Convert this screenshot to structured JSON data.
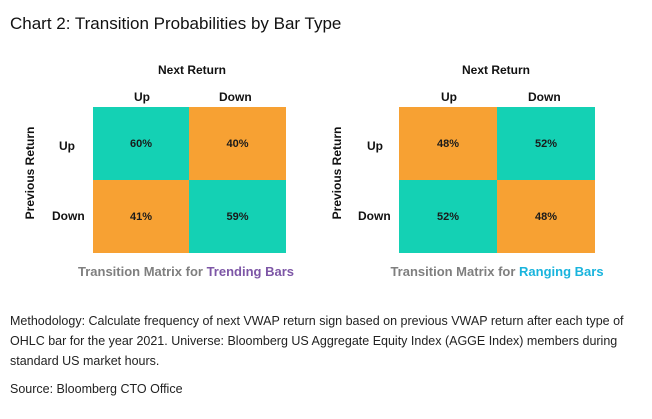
{
  "title": "Chart 2: Transition Probabilities by Bar Type",
  "colors": {
    "orange": "#f7a133",
    "teal": "#14d1b4",
    "purple": "#7d56a6",
    "cyan": "#19b4dd",
    "grey": "#7f7f7f"
  },
  "chart_data": [
    {
      "type": "heatmap",
      "col_axis_label": "Next Return",
      "row_axis_label": "Previous Return",
      "columns": [
        "Up",
        "Down"
      ],
      "rows": [
        "Up",
        "Down"
      ],
      "values": [
        [
          "60%",
          "40%"
        ],
        [
          "41%",
          "59%"
        ]
      ],
      "cell_colors": [
        [
          "teal",
          "orange"
        ],
        [
          "orange",
          "teal"
        ]
      ],
      "caption_prefix": "Transition Matrix for ",
      "caption_highlight": "Trending Bars",
      "caption_color": "purple"
    },
    {
      "type": "heatmap",
      "col_axis_label": "Next Return",
      "row_axis_label": "Previous Return",
      "columns": [
        "Up",
        "Down"
      ],
      "rows": [
        "Up",
        "Down"
      ],
      "values": [
        [
          "48%",
          "52%"
        ],
        [
          "52%",
          "48%"
        ]
      ],
      "cell_colors": [
        [
          "orange",
          "teal"
        ],
        [
          "teal",
          "orange"
        ]
      ],
      "caption_prefix": "Transition Matrix for ",
      "caption_highlight": "Ranging Bars",
      "caption_color": "cyan"
    }
  ],
  "methodology": "Methodology: Calculate frequency of next VWAP return sign based on previous VWAP return after each type of OHLC bar for the year 2021. Universe: Bloomberg US Aggregate Equity Index (AGGE Index) members during standard US market hours.",
  "source": "Source: Bloomberg CTO Office"
}
